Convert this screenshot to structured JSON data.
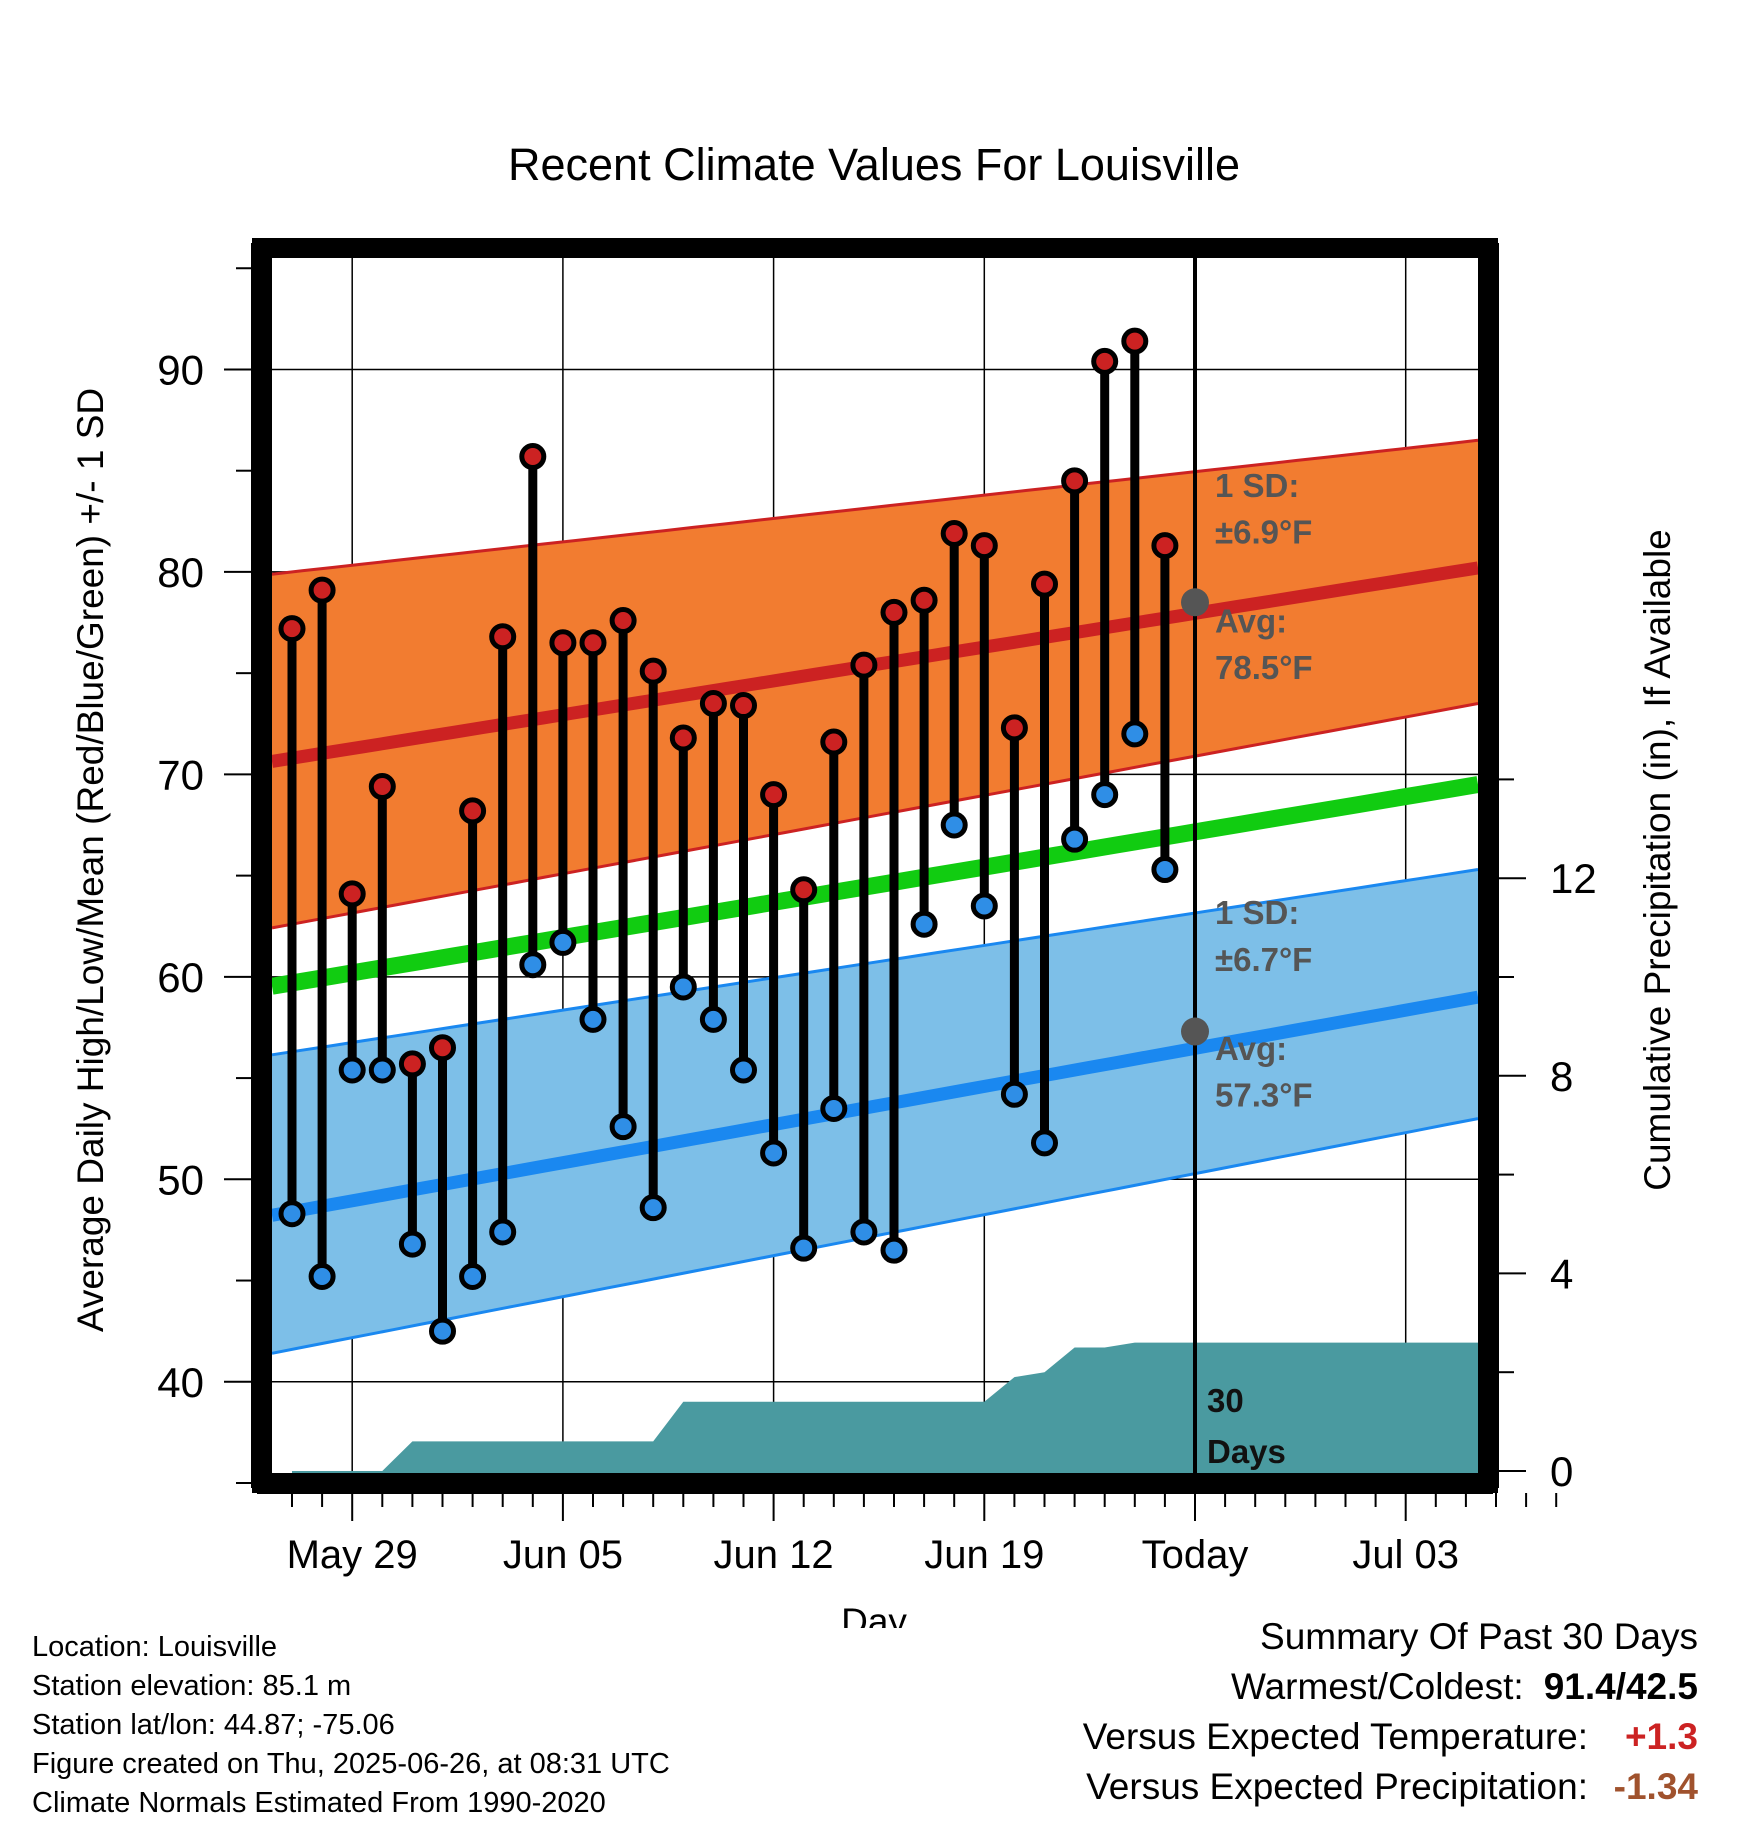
{
  "chart_data": {
    "type": "line",
    "title": "Recent Climate Values For Louisville",
    "xlabel": "Day",
    "ylabel": "Average Daily High/Low/Mean (Red/Blue/Green) +/- 1 SD",
    "ylabel_right": "Cumulative Precipitation (in), If Available",
    "ylim": [
      35,
      96
    ],
    "ylim_right": [
      0,
      30
    ],
    "yticks": [
      40,
      50,
      60,
      70,
      80,
      90
    ],
    "yticks_right": [
      0,
      4,
      8,
      12
    ],
    "x_tick_labels": [
      "May 29",
      "Jun 05",
      "Jun 12",
      "Jun 19",
      "Today",
      "Jul 03"
    ],
    "x_dates": [
      "May 27",
      "May 28",
      "May 29",
      "May 30",
      "May 31",
      "Jun 01",
      "Jun 02",
      "Jun 03",
      "Jun 04",
      "Jun 05",
      "Jun 06",
      "Jun 07",
      "Jun 08",
      "Jun 09",
      "Jun 10",
      "Jun 11",
      "Jun 12",
      "Jun 13",
      "Jun 14",
      "Jun 15",
      "Jun 16",
      "Jun 17",
      "Jun 18",
      "Jun 19",
      "Jun 20",
      "Jun 21",
      "Jun 22",
      "Jun 23",
      "Jun 24",
      "Jun 25"
    ],
    "series": [
      {
        "name": "High",
        "color": "#cc2222",
        "values": [
          77.2,
          79.1,
          64.1,
          69.4,
          55.7,
          56.5,
          68.2,
          76.8,
          85.7,
          76.5,
          76.5,
          77.6,
          75.1,
          71.8,
          73.5,
          73.4,
          69.0,
          64.3,
          71.6,
          75.4,
          78.0,
          78.6,
          81.9,
          81.3,
          72.3,
          79.4,
          84.5,
          90.4,
          91.4,
          81.3
        ]
      },
      {
        "name": "Low",
        "color": "#2f8ee6",
        "values": [
          48.3,
          45.2,
          55.4,
          55.4,
          46.8,
          42.5,
          45.2,
          47.4,
          60.6,
          61.7,
          57.9,
          52.6,
          48.6,
          59.5,
          57.9,
          55.4,
          51.3,
          46.6,
          53.5,
          47.4,
          46.5,
          62.6,
          67.5,
          63.5,
          54.2,
          51.8,
          66.8,
          69.0,
          72.0,
          65.3
        ]
      }
    ],
    "normals": {
      "high_avg": [
        70.8,
        80.2
      ],
      "high_upper": [
        80.0,
        86.5
      ],
      "high_lower": [
        62.6,
        73.5
      ],
      "low_avg": [
        48.4,
        59.0
      ],
      "low_upper": [
        56.3,
        65.3
      ],
      "low_lower": [
        41.6,
        53.0
      ],
      "mean": [
        59.7,
        69.5
      ]
    },
    "precip_cumulative": [
      0,
      0,
      0,
      0,
      0.6,
      0.6,
      0.6,
      0.6,
      0.6,
      0.6,
      0.6,
      0.6,
      0.6,
      1.4,
      1.4,
      1.4,
      1.4,
      1.4,
      1.4,
      1.4,
      1.4,
      1.4,
      1.4,
      1.4,
      1.9,
      2.0,
      2.5,
      2.5,
      2.6,
      2.6,
      2.6,
      2.6,
      2.6,
      2.6,
      2.6,
      2.6,
      2.6,
      2.6,
      2.6,
      2.6,
      2.6
    ],
    "colors": {
      "high_band": "#f27c30",
      "high_line": "#cc2222",
      "low_band": "#7dbfe8",
      "low_line": "#1a88f0",
      "mean_line": "#11cc11",
      "precip": "#4a9aa0",
      "annotation": "#555555"
    },
    "annotations": {
      "high_sd_label": "1 SD:",
      "high_sd_value": "±6.9°F",
      "high_avg_label": "Avg:",
      "high_avg_value": "78.5°F",
      "low_sd_label": "1 SD:",
      "low_sd_value": "±6.7°F",
      "low_avg_label": "Avg:",
      "low_avg_value": "57.3°F",
      "days_line1": "30",
      "days_line2": "Days",
      "today_high_avg": 78.5,
      "today_low_avg": 57.3
    }
  },
  "info": {
    "location": "Location: Louisville",
    "elevation": "Station elevation: 85.1 m",
    "latlon": "Station lat/lon: 44.87; -75.06",
    "created": "Figure created on Thu, 2025-06-26, at 08:31 UTC",
    "normals": "Climate Normals Estimated From 1990-2020"
  },
  "summary": {
    "title": "Summary Of Past 30 Days",
    "warmest_label": "Warmest/Coldest:",
    "warmest_value": "91.4/42.5",
    "temp_label": "Versus Expected Temperature:",
    "temp_value": "+1.3",
    "temp_color": "#cc2222",
    "precip_label": "Versus Expected Precipitation:",
    "precip_value": "-1.34",
    "precip_color": "#a0522d"
  }
}
